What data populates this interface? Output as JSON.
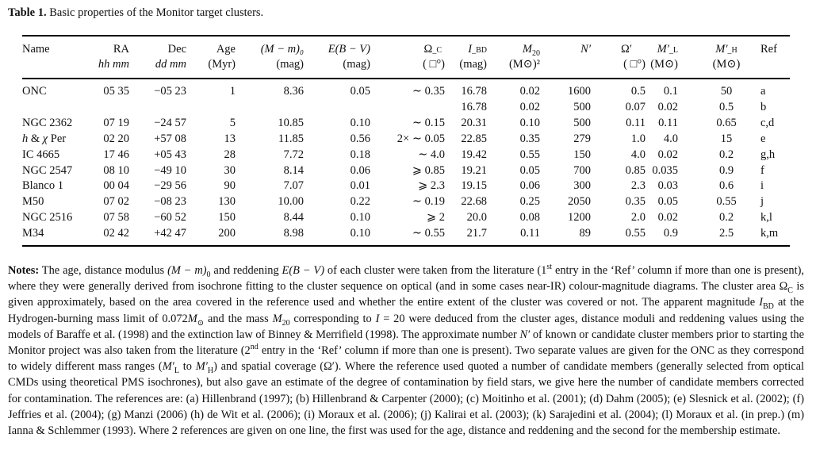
{
  "caption": {
    "label": "Table 1.",
    "text": "Basic properties of the Monitor target clusters."
  },
  "header": {
    "row1": [
      "Name",
      "RA",
      "Dec",
      "Age",
      "(M − m)₀",
      "E(B − V)",
      "Ω_C",
      "I_BD",
      "M₂₀",
      "N′",
      "Ω′",
      "M′_L",
      "M′_H",
      "Ref"
    ],
    "row2": [
      "",
      "hh mm",
      "dd mm",
      "(Myr)",
      "(mag)",
      "(mag)",
      "(  □°)",
      "(mag)",
      "(M⊙)²",
      "",
      "(  □°)",
      "(M⊙)",
      "(M⊙)",
      ""
    ]
  },
  "rows": [
    [
      "ONC",
      "05 35",
      "−05 23",
      "1",
      "8.36",
      "0.05",
      "∼ 0.35",
      "16.78",
      "0.02",
      "1600",
      "0.5",
      "0.1",
      "50",
      "a"
    ],
    [
      "",
      "",
      "",
      "",
      "",
      "",
      "",
      "16.78",
      "0.02",
      "500",
      "0.07",
      "0.02",
      "0.5",
      "b"
    ],
    [
      "NGC 2362",
      "07 19",
      "−24 57",
      "5",
      "10.85",
      "0.10",
      "∼ 0.15",
      "20.31",
      "0.10",
      "500",
      "0.11",
      "0.11",
      "0.65",
      "c,d"
    ],
    [
      "h & χ Per",
      "02 20",
      "+57 08",
      "13",
      "11.85",
      "0.56",
      "2× ∼ 0.05",
      "22.85",
      "0.35",
      "279",
      "1.0",
      "4.0",
      "15",
      "e"
    ],
    [
      "IC 4665",
      "17 46",
      "+05 43",
      "28",
      "7.72",
      "0.18",
      "∼ 4.0",
      "19.42",
      "0.55",
      "150",
      "4.0",
      "0.02",
      "0.2",
      "g,h"
    ],
    [
      "NGC 2547",
      "08 10",
      "−49 10",
      "30",
      "8.14",
      "0.06",
      "⩾ 0.85",
      "19.21",
      "0.05",
      "700",
      "0.85",
      "0.035",
      "0.9",
      "f"
    ],
    [
      "Blanco 1",
      "00 04",
      "−29 56",
      "90",
      "7.07",
      "0.01",
      "⩾ 2.3",
      "19.15",
      "0.06",
      "300",
      "2.3",
      "0.03",
      "0.6",
      "i"
    ],
    [
      "M50",
      "07 02",
      "−08 23",
      "130",
      "10.00",
      "0.22",
      "∼ 0.19",
      "22.68",
      "0.25",
      "2050",
      "0.35",
      "0.05",
      "0.55",
      "j"
    ],
    [
      "NGC 2516",
      "07 58",
      "−60 52",
      "150",
      "8.44",
      "0.10",
      "⩾ 2",
      "20.0",
      "0.08",
      "1200",
      "2.0",
      "0.02",
      "0.2",
      "k,l"
    ],
    [
      "M34",
      "02 42",
      "+42 47",
      "200",
      "8.98",
      "0.10",
      "∼ 0.55",
      "21.7",
      "0.11",
      "89",
      "0.55",
      "0.9",
      "2.5",
      "k,m"
    ]
  ],
  "notes": [
    {
      "b": "Notes:"
    },
    {
      "t": " The age, distance modulus "
    },
    {
      "i": "(M − m)"
    },
    {
      "sub": "0"
    },
    {
      "t": " and reddening "
    },
    {
      "i": "E(B − V)"
    },
    {
      "t": " of each cluster were taken from the literature (1"
    },
    {
      "sup": "st"
    },
    {
      "t": " entry in the ‘Ref’ column if more than one is present), where they were generally derived from isochrone fitting to the cluster sequence on optical (and in some cases near-IR) colour-magnitude diagrams. The cluster area Ω"
    },
    {
      "sub": "C"
    },
    {
      "t": " is given approximately, based on the area covered in the reference used and whether the entire extent of the cluster was covered or not. The apparent magnitude "
    },
    {
      "i": "I"
    },
    {
      "sub": "BD"
    },
    {
      "t": " at the Hydrogen-burning mass limit of 0.072"
    },
    {
      "i": "M"
    },
    {
      "sub": "⊙"
    },
    {
      "t": " and the mass "
    },
    {
      "i": "M"
    },
    {
      "sub": "20"
    },
    {
      "t": " corresponding to "
    },
    {
      "i": "I"
    },
    {
      "t": " = 20 were deduced from the cluster ages, distance moduli and reddening values using the models of Baraffe et al. (1998) and the extinction law of Binney & Merrifield (1998). The approximate number "
    },
    {
      "i": "N′"
    },
    {
      "t": " of known or candidate cluster members prior to starting the Monitor project was also taken from the literature (2"
    },
    {
      "sup": "nd"
    },
    {
      "t": " entry in the ‘Ref’ column if more than one is present). Two separate values are given for the ONC as they correspond to widely different mass ranges ("
    },
    {
      "i": "M′"
    },
    {
      "sub": "L"
    },
    {
      "t": " to "
    },
    {
      "i": "M′"
    },
    {
      "sub": "H"
    },
    {
      "t": ") and spatial coverage (Ω′). Where the reference used quoted a number of candidate members (generally selected from optical CMDs using theoretical PMS isochrones), but also gave an estimate of the degree of contamination by field stars, we give here the number of candidate members corrected for contamination. The references are: (a) Hillenbrand (1997); (b) Hillenbrand & Carpenter (2000); (c) Moitinho et al. (2001); (d) Dahm (2005); (e) Slesnick et al. (2002); (f) Jeffries et al. (2004); (g) Manzi (2006) (h) de Wit et al. (2006); (i) Moraux et al. (2006); (j) Kalirai et al. (2003); (k) Sarajedini et al. (2004); (l) Moraux et al. (in prep.) (m) Ianna & Schlemmer (1993). Where 2 references are given on one line, the first was used for the age, distance and reddening and the second for the membership estimate."
    }
  ]
}
